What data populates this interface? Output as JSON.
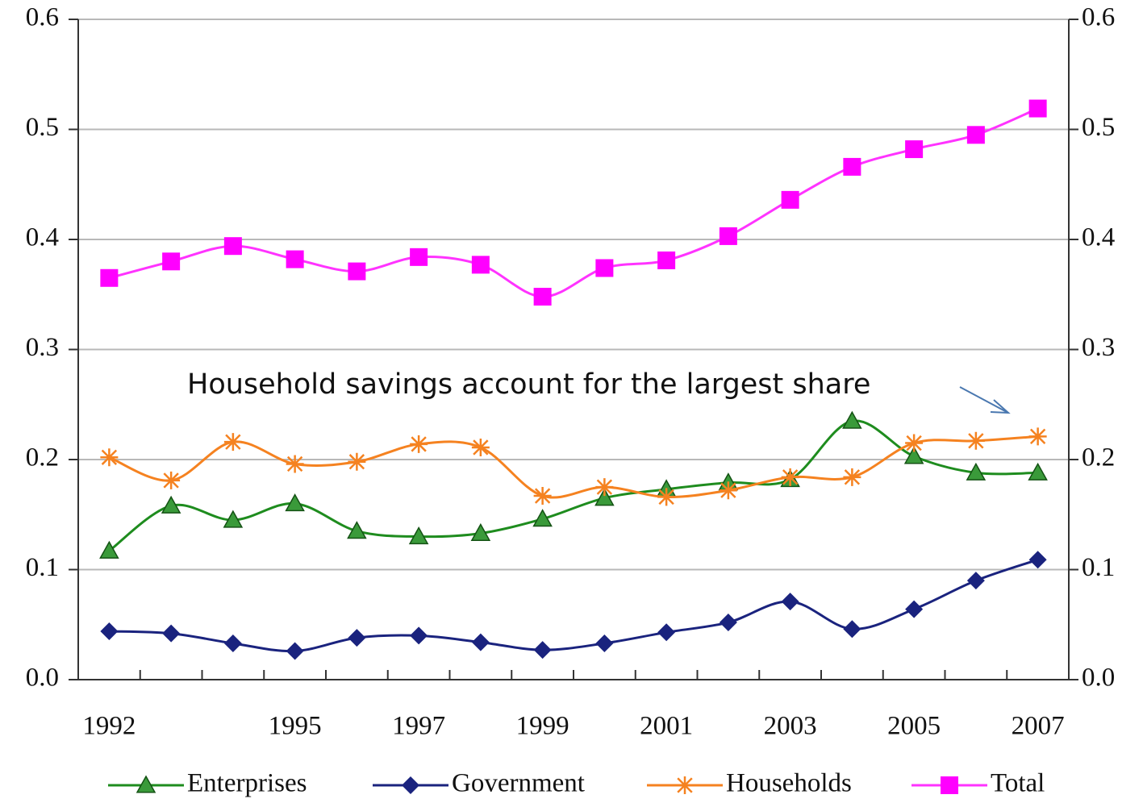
{
  "chart_data": {
    "type": "line",
    "annotation": "Household savings account for the largest share",
    "categories": [
      "1992",
      null,
      null,
      "1995",
      null,
      "1997",
      null,
      "1999",
      null,
      "2001",
      null,
      "2003",
      null,
      "2005",
      null,
      "2007"
    ],
    "series": [
      {
        "name": "Enterprises",
        "color": "#1e8c1e",
        "marker": "triangle",
        "marker_color": "#3a9a3a",
        "values": [
          0.117,
          0.158,
          0.145,
          0.16,
          0.135,
          0.13,
          0.133,
          0.146,
          0.165,
          0.173,
          0.179,
          0.182,
          0.235,
          0.203,
          0.188,
          0.188
        ]
      },
      {
        "name": "Government",
        "color": "#1a237e",
        "marker": "diamond",
        "marker_color": "#1a237e",
        "values": [
          0.044,
          0.042,
          0.033,
          0.026,
          0.038,
          0.04,
          0.034,
          0.027,
          0.033,
          0.043,
          0.052,
          0.071,
          0.046,
          0.064,
          0.09,
          0.109
        ]
      },
      {
        "name": "Households",
        "color": "#f58220",
        "marker": "asterisk",
        "marker_color": "#f58220",
        "values": [
          0.202,
          0.181,
          0.216,
          0.196,
          0.198,
          0.214,
          0.211,
          0.167,
          0.175,
          0.166,
          0.172,
          0.184,
          0.184,
          0.215,
          0.217,
          0.221
        ]
      },
      {
        "name": "Total",
        "color": "#ff33ff",
        "marker": "square",
        "marker_color": "#ff00ff",
        "values": [
          0.365,
          0.38,
          0.394,
          0.382,
          0.371,
          0.384,
          0.377,
          0.348,
          0.374,
          0.381,
          0.403,
          0.436,
          0.466,
          0.482,
          0.495,
          0.519
        ]
      }
    ],
    "ylim": [
      0,
      0.6
    ],
    "yticks": [
      {
        "value": 0,
        "label": "0.0"
      },
      0.1,
      0.2,
      0.3,
      0.4,
      0.5,
      0.6
    ],
    "y2lim": [
      0,
      0.6
    ],
    "y2ticks": [
      {
        "value": 0,
        "label": "0.0"
      },
      0.1,
      0.2,
      0.3,
      0.4,
      0.5,
      0.6
    ],
    "grid": true,
    "legend": "bottom"
  }
}
